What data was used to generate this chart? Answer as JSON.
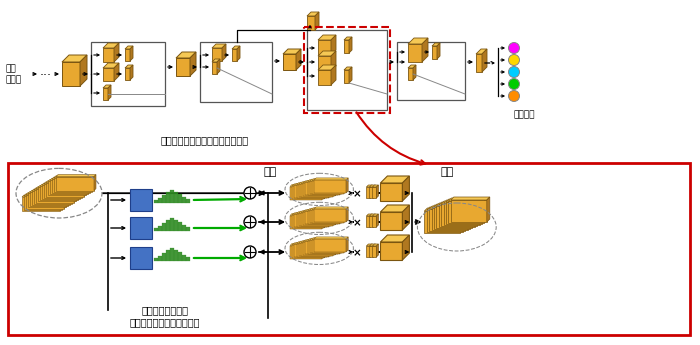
{
  "bg_color": "#ffffff",
  "top_label_input": "入力\nデータ",
  "top_label_output": "認識結果",
  "top_caption": "多様な分岐・合流のあるモデル例",
  "bottom_caption1": "各分岐に対応する",
  "bottom_caption2": "アテンション・モジュール",
  "branch_label": "分岐",
  "merge_label": "合流",
  "box_face": "#E8A830",
  "box_top": "#F5C855",
  "box_right": "#B07820",
  "box_edge": "#7A5510",
  "blue_fc": "#4472C4",
  "blue_ec": "#1F3F8A",
  "green_bar": "#2E8B22",
  "red_border": "#CC0000",
  "output_dots": [
    "#FF00FF",
    "#FFD700",
    "#00CCFF",
    "#00CC00",
    "#FF8C00"
  ],
  "green_arrow": "#00AA00"
}
